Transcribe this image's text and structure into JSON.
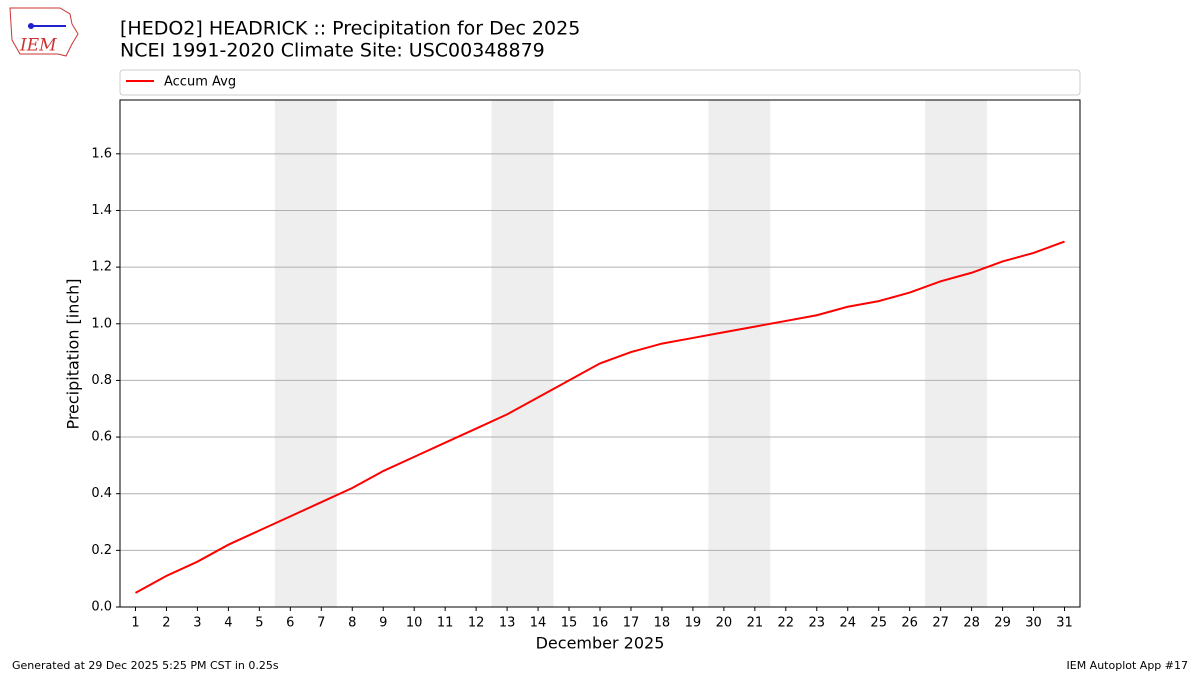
{
  "logo_text": "IEM",
  "chart_data": {
    "type": "line",
    "title": "[HEDO2] HEADRICK :: Precipitation for Dec 2025",
    "subtitle": "NCEI 1991-2020 Climate Site: USC00348879",
    "xlabel": "December 2025",
    "ylabel": "Precipitation [inch]",
    "x": [
      1,
      2,
      3,
      4,
      5,
      6,
      7,
      8,
      9,
      10,
      11,
      12,
      13,
      14,
      15,
      16,
      17,
      18,
      19,
      20,
      21,
      22,
      23,
      24,
      25,
      26,
      27,
      28,
      29,
      30,
      31
    ],
    "series": [
      {
        "name": "Accum Avg",
        "color": "#ff0000",
        "values": [
          0.05,
          0.11,
          0.16,
          0.22,
          0.27,
          0.32,
          0.37,
          0.42,
          0.48,
          0.53,
          0.58,
          0.63,
          0.68,
          0.74,
          0.8,
          0.86,
          0.9,
          0.93,
          0.95,
          0.97,
          0.99,
          1.01,
          1.03,
          1.06,
          1.08,
          1.11,
          1.15,
          1.18,
          1.22,
          1.25,
          1.29
        ]
      }
    ],
    "shaded_spans": [
      [
        5.5,
        7.5
      ],
      [
        12.5,
        14.5
      ],
      [
        19.5,
        21.5
      ],
      [
        26.5,
        28.5
      ]
    ],
    "xlim": [
      0.5,
      31.5
    ],
    "xticks": [
      1,
      2,
      3,
      4,
      5,
      6,
      7,
      8,
      9,
      10,
      11,
      12,
      13,
      14,
      15,
      16,
      17,
      18,
      19,
      20,
      21,
      22,
      23,
      24,
      25,
      26,
      27,
      28,
      29,
      30,
      31
    ],
    "ylim": [
      0,
      1.79
    ],
    "yticks": [
      {
        "value": 0,
        "label": "0.0"
      },
      0.2,
      0.4,
      0.6,
      0.8,
      {
        "value": 1,
        "label": "1.0"
      },
      1.2,
      1.4,
      1.6
    ],
    "grid": true,
    "legend": "top",
    "footer_left": "Generated at 29 Dec 2025 5:25 PM CST in 0.25s",
    "footer_right": "IEM Autoplot App #17"
  }
}
